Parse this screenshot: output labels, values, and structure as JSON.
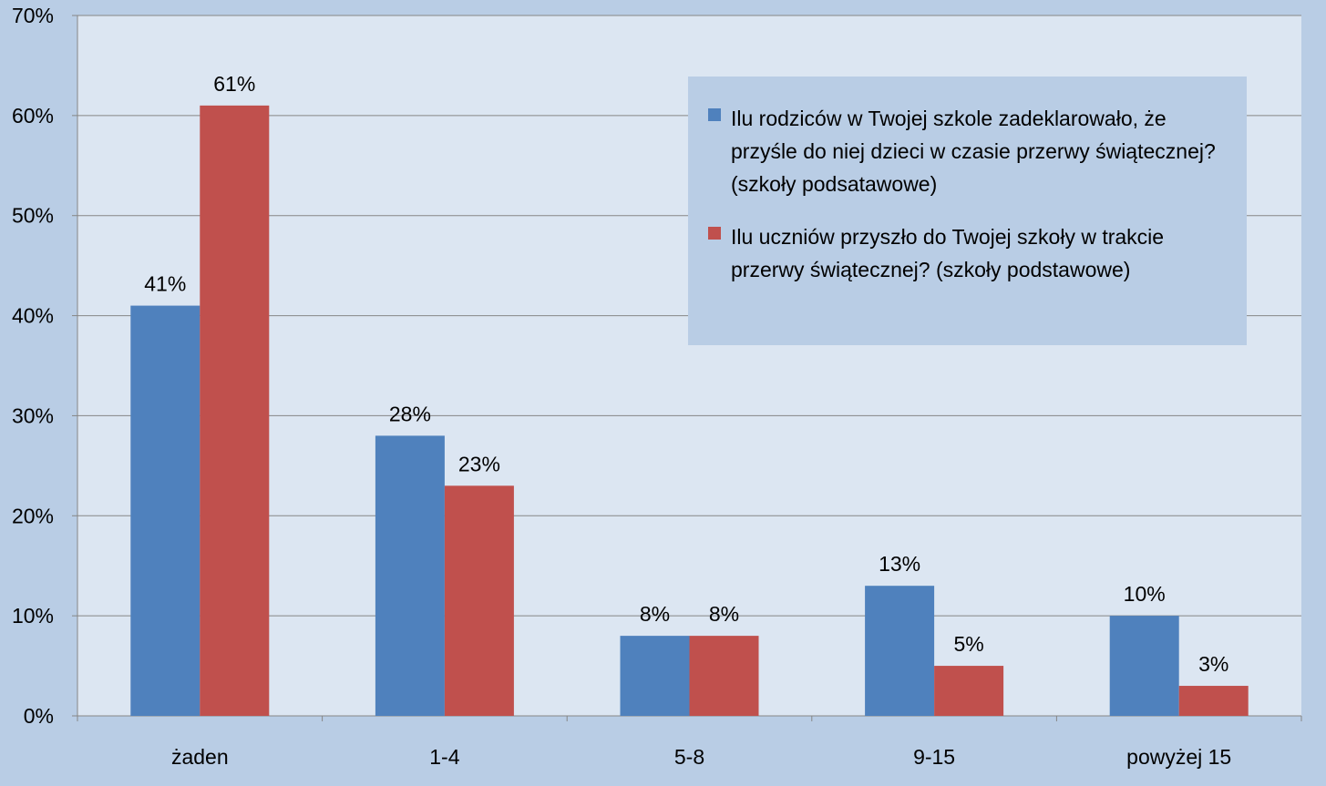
{
  "chart_data": {
    "type": "bar",
    "categories": [
      "żaden",
      "1-4",
      "5-8",
      "9-15",
      "powyżej 15"
    ],
    "series": [
      {
        "name": "Ilu rodziców w Twojej szkole zadeklarowało, że przyśle do niej dzieci w czasie przerwy świątecznej? (szkoły podsatawowe)",
        "values": [
          41,
          28,
          8,
          13,
          10
        ],
        "labels": [
          "41%",
          "28%",
          "8%",
          "13%",
          "10%"
        ],
        "color": "#4f81bd"
      },
      {
        "name": "Ilu uczniów przyszło do Twojej szkoły w trakcie przerwy świątecznej? (szkoły podstawowe)",
        "values": [
          61,
          23,
          8,
          5,
          3
        ],
        "labels": [
          "61%",
          "23%",
          "8%",
          "5%",
          "3%"
        ],
        "color": "#c0504d"
      }
    ],
    "ylim": [
      0,
      70
    ],
    "yticks": [
      "0%",
      "10%",
      "20%",
      "30%",
      "40%",
      "50%",
      "60%",
      "70%"
    ],
    "grid": true,
    "legend": "top-right",
    "plot_background": "#dce6f2",
    "chart_background": "#b9cde5"
  }
}
